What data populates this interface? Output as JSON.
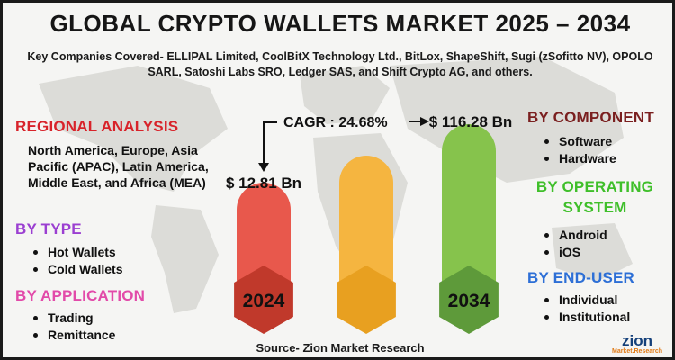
{
  "title": "GLOBAL CRYPTO WALLETS MARKET 2025 – 2034",
  "subtitle": "Key Companies Covered- ELLIPAL Limited, CoolBitX Technology Ltd., BitLox, ShapeShift, Sugi (zSofitto NV), OPOLO SARL, Satoshi Labs SRO, Ledger SAS, and Shift Crypto AG, and others.",
  "left": {
    "regional": {
      "heading": "REGIONAL ANALYSIS",
      "text": "North America, Europe, Asia Pacific (APAC), Latin America, Middle East, and Africa (MEA)",
      "color": "#d8232a"
    },
    "by_type": {
      "heading": "BY TYPE",
      "items": [
        "Hot Wallets",
        "Cold Wallets"
      ],
      "color": "#9b3fd1"
    },
    "by_application": {
      "heading": "BY APPLICATION",
      "items": [
        "Trading",
        "Remittance"
      ],
      "color": "#e24aa9"
    }
  },
  "right": {
    "by_component": {
      "heading": "BY COMPONENT",
      "items": [
        "Software",
        "Hardware"
      ],
      "color": "#7a1f1f"
    },
    "by_operating_system": {
      "heading_line1": "BY OPERATING",
      "heading_line2": "SYSTEM",
      "items": [
        "Android",
        "iOS"
      ],
      "color": "#3fbf2a"
    },
    "by_end_user": {
      "heading": "BY END-USER",
      "items": [
        "Individual",
        "Institutional"
      ],
      "color": "#2d6fd6"
    }
  },
  "chart_data": {
    "type": "bar",
    "categories": [
      "2024",
      "",
      "2034"
    ],
    "values": [
      12.81,
      null,
      116.28
    ],
    "value_labels": [
      "$ 12.81 Bn",
      "",
      "$ 116.28 Bn"
    ],
    "cagr_label": "CAGR : 24.68%",
    "colors": [
      "#e8584c",
      "#f5b540",
      "#86c34c"
    ],
    "hex_colors": [
      "#c0392b",
      "#e8a020",
      "#5e9a3a"
    ]
  },
  "source": "Source- Zion Market Research",
  "logo": {
    "name": "zion",
    "sub": "Market.Research"
  }
}
